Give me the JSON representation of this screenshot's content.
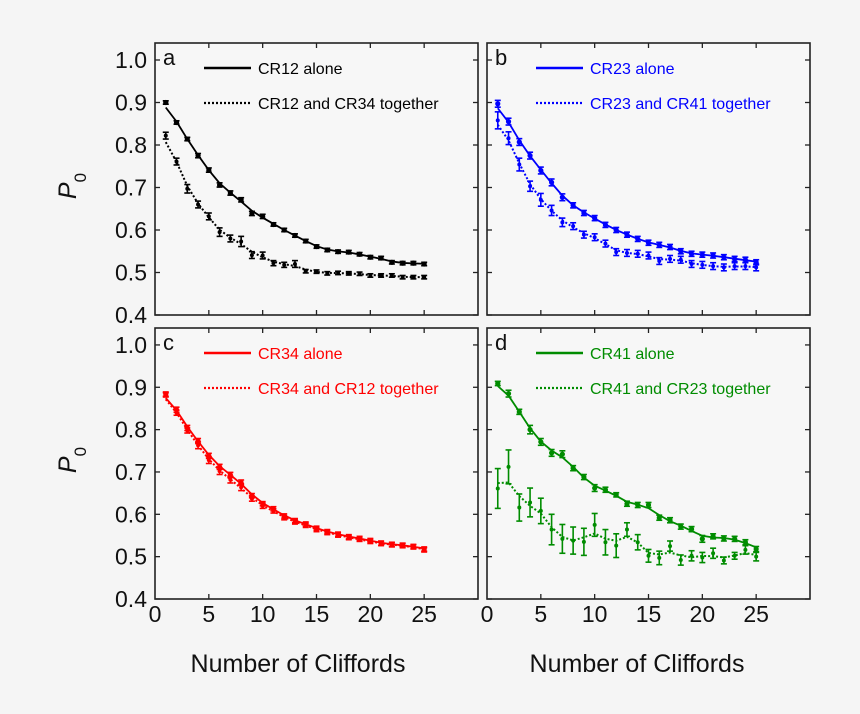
{
  "chart_data": [
    {
      "type": "line",
      "panel": "a",
      "color": "#000000",
      "xlabel": "",
      "ylabel": "P0",
      "xlim": [
        0,
        30
      ],
      "ylim": [
        0.4,
        1.04
      ],
      "yticks": [
        "0.4",
        "0.5",
        "0.6",
        "0.7",
        "0.8",
        "0.9",
        "1.0"
      ],
      "xticks": [],
      "x": [
        1,
        2,
        3,
        4,
        5,
        6,
        7,
        8,
        9,
        10,
        11,
        12,
        13,
        14,
        15,
        16,
        17,
        18,
        19,
        20,
        21,
        22,
        23,
        24,
        25
      ],
      "series": [
        {
          "name": "CR12 alone",
          "style": "solid",
          "values": [
            0.9,
            0.853,
            0.814,
            0.775,
            0.741,
            0.706,
            0.687,
            0.671,
            0.639,
            0.632,
            0.613,
            0.6,
            0.587,
            0.574,
            0.561,
            0.553,
            0.549,
            0.548,
            0.543,
            0.536,
            0.534,
            0.524,
            0.522,
            0.522,
            0.52
          ],
          "errors": [
            0.004,
            0.004,
            0.004,
            0.005,
            0.005,
            0.005,
            0.005,
            0.005,
            0.005,
            0.005,
            0.004,
            0.004,
            0.004,
            0.004,
            0.004,
            0.004,
            0.004,
            0.004,
            0.004,
            0.004,
            0.004,
            0.004,
            0.004,
            0.004,
            0.004
          ]
        },
        {
          "name": "CR12 and CR34 together",
          "style": "dotted",
          "values": [
            0.822,
            0.761,
            0.697,
            0.66,
            0.632,
            0.595,
            0.58,
            0.573,
            0.541,
            0.54,
            0.522,
            0.518,
            0.52,
            0.503,
            0.502,
            0.498,
            0.499,
            0.498,
            0.497,
            0.493,
            0.493,
            0.493,
            0.489,
            0.489,
            0.489
          ],
          "errors": [
            0.008,
            0.008,
            0.01,
            0.008,
            0.008,
            0.01,
            0.008,
            0.012,
            0.008,
            0.008,
            0.006,
            0.006,
            0.008,
            0.004,
            0.004,
            0.004,
            0.004,
            0.004,
            0.004,
            0.004,
            0.004,
            0.004,
            0.004,
            0.004,
            0.004
          ]
        }
      ]
    },
    {
      "type": "line",
      "panel": "b",
      "color": "#0000ff",
      "xlabel": "",
      "ylabel": "",
      "xlim": [
        0,
        30
      ],
      "ylim": [
        0.4,
        1.04
      ],
      "yticks": [],
      "xticks": [],
      "x": [
        1,
        2,
        3,
        4,
        5,
        6,
        7,
        8,
        9,
        10,
        11,
        12,
        13,
        14,
        15,
        16,
        17,
        18,
        19,
        20,
        21,
        22,
        23,
        24,
        25
      ],
      "series": [
        {
          "name": "CR23 alone",
          "style": "solid",
          "values": [
            0.897,
            0.855,
            0.807,
            0.775,
            0.74,
            0.712,
            0.677,
            0.658,
            0.64,
            0.628,
            0.612,
            0.6,
            0.589,
            0.579,
            0.57,
            0.565,
            0.56,
            0.55,
            0.544,
            0.542,
            0.54,
            0.536,
            0.532,
            0.53,
            0.524
          ],
          "errors": [
            0.008,
            0.008,
            0.008,
            0.008,
            0.008,
            0.008,
            0.008,
            0.006,
            0.006,
            0.006,
            0.006,
            0.006,
            0.006,
            0.006,
            0.006,
            0.006,
            0.006,
            0.006,
            0.006,
            0.006,
            0.006,
            0.006,
            0.006,
            0.006,
            0.006
          ]
        },
        {
          "name": "CR23 and CR41 together",
          "style": "dotted",
          "values": [
            0.858,
            0.816,
            0.754,
            0.703,
            0.671,
            0.646,
            0.618,
            0.609,
            0.589,
            0.583,
            0.568,
            0.548,
            0.546,
            0.544,
            0.54,
            0.527,
            0.532,
            0.53,
            0.52,
            0.518,
            0.515,
            0.512,
            0.515,
            0.515,
            0.512
          ],
          "errors": [
            0.02,
            0.015,
            0.015,
            0.012,
            0.015,
            0.012,
            0.01,
            0.008,
            0.008,
            0.008,
            0.008,
            0.008,
            0.008,
            0.008,
            0.008,
            0.008,
            0.008,
            0.008,
            0.008,
            0.008,
            0.008,
            0.008,
            0.008,
            0.008,
            0.008
          ]
        }
      ]
    },
    {
      "type": "line",
      "panel": "c",
      "color": "#ff0000",
      "xlabel": "Number of Cliffords",
      "ylabel": "P0",
      "xlim": [
        0,
        30
      ],
      "ylim": [
        0.4,
        1.04
      ],
      "yticks": [
        "0.4",
        "0.5",
        "0.6",
        "0.7",
        "0.8",
        "0.9",
        "1.0"
      ],
      "xticks": [
        "0",
        "5",
        "10",
        "15",
        "20",
        "25"
      ],
      "x": [
        1,
        2,
        3,
        4,
        5,
        6,
        7,
        8,
        9,
        10,
        11,
        12,
        13,
        14,
        15,
        16,
        17,
        18,
        19,
        20,
        21,
        22,
        23,
        24,
        25
      ],
      "series": [
        {
          "name": "CR34 alone",
          "style": "solid",
          "values": [
            0.884,
            0.847,
            0.804,
            0.773,
            0.738,
            0.712,
            0.693,
            0.675,
            0.644,
            0.625,
            0.613,
            0.596,
            0.585,
            0.577,
            0.567,
            0.559,
            0.553,
            0.547,
            0.543,
            0.538,
            0.532,
            0.529,
            0.527,
            0.524,
            0.518
          ],
          "errors": [
            0.005,
            0.006,
            0.006,
            0.006,
            0.006,
            0.006,
            0.006,
            0.006,
            0.005,
            0.005,
            0.005,
            0.005,
            0.005,
            0.005,
            0.005,
            0.005,
            0.005,
            0.005,
            0.005,
            0.005,
            0.005,
            0.005,
            0.005,
            0.005,
            0.005
          ]
        },
        {
          "name": "CR34 and CR12 together",
          "style": "dotted",
          "values": [
            0.882,
            0.84,
            0.798,
            0.763,
            0.728,
            0.702,
            0.682,
            0.664,
            0.637,
            0.62,
            0.608,
            0.592,
            0.582,
            0.574,
            0.564,
            0.557,
            0.551,
            0.545,
            0.541,
            0.536,
            0.531,
            0.528,
            0.526,
            0.523,
            0.516
          ],
          "errors": [
            0.005,
            0.006,
            0.006,
            0.008,
            0.008,
            0.008,
            0.008,
            0.008,
            0.006,
            0.006,
            0.005,
            0.005,
            0.005,
            0.005,
            0.005,
            0.005,
            0.005,
            0.005,
            0.005,
            0.005,
            0.005,
            0.005,
            0.005,
            0.005,
            0.005
          ]
        }
      ]
    },
    {
      "type": "line",
      "panel": "d",
      "color": "#008c00",
      "xlabel": "Number of Cliffords",
      "ylabel": "",
      "xlim": [
        0,
        30
      ],
      "ylim": [
        0.4,
        1.04
      ],
      "yticks": [],
      "xticks": [
        "0",
        "5",
        "10",
        "15",
        "20",
        "25"
      ],
      "x": [
        1,
        2,
        3,
        4,
        5,
        6,
        7,
        8,
        9,
        10,
        11,
        12,
        13,
        14,
        15,
        16,
        17,
        18,
        19,
        20,
        21,
        22,
        23,
        24,
        25
      ],
      "series": [
        {
          "name": "CR41 alone",
          "style": "solid",
          "values": [
            0.909,
            0.885,
            0.842,
            0.8,
            0.771,
            0.745,
            0.742,
            0.709,
            0.688,
            0.662,
            0.658,
            0.646,
            0.625,
            0.622,
            0.622,
            0.592,
            0.586,
            0.571,
            0.565,
            0.542,
            0.548,
            0.543,
            0.542,
            0.534,
            0.518
          ],
          "errors": [
            0.005,
            0.008,
            0.006,
            0.01,
            0.008,
            0.008,
            0.008,
            0.006,
            0.006,
            0.008,
            0.006,
            0.005,
            0.006,
            0.006,
            0.006,
            0.006,
            0.006,
            0.006,
            0.006,
            0.008,
            0.006,
            0.006,
            0.006,
            0.006,
            0.006
          ]
        },
        {
          "name": "CR41 and CR23 together",
          "style": "dotted",
          "values": [
            0.661,
            0.712,
            0.616,
            0.628,
            0.608,
            0.564,
            0.542,
            0.538,
            0.535,
            0.575,
            0.534,
            0.526,
            0.564,
            0.534,
            0.502,
            0.497,
            0.525,
            0.492,
            0.502,
            0.498,
            0.508,
            0.491,
            0.502,
            0.516,
            0.5
          ],
          "errors": [
            0.047,
            0.04,
            0.032,
            0.034,
            0.03,
            0.036,
            0.034,
            0.032,
            0.032,
            0.027,
            0.03,
            0.028,
            0.016,
            0.018,
            0.015,
            0.016,
            0.012,
            0.012,
            0.012,
            0.012,
            0.012,
            0.008,
            0.008,
            0.01,
            0.01
          ]
        }
      ]
    }
  ],
  "figure": {
    "x_axis_label": "Number of Cliffords",
    "y_axis_label_main": "P",
    "y_axis_label_sub": "0",
    "panel_letters": [
      "a",
      "b",
      "c",
      "d"
    ]
  }
}
